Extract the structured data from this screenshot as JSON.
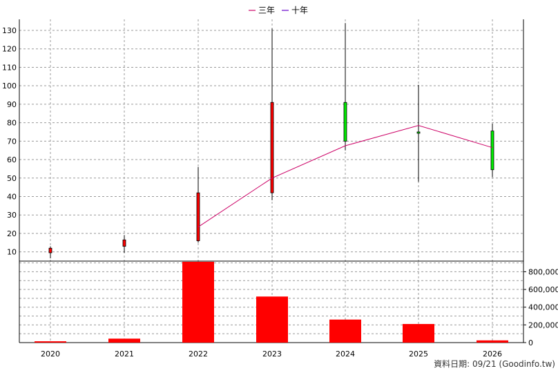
{
  "chart_data": {
    "type": "candlestick",
    "legend": [
      {
        "label": "三年",
        "color": "#cc0066"
      },
      {
        "label": "十年",
        "color": "#6600cc"
      }
    ],
    "x_categories": [
      "2020",
      "2021",
      "2022",
      "2023",
      "2024",
      "2025",
      "2026"
    ],
    "price_axis": {
      "ticks": [
        10,
        20,
        30,
        40,
        50,
        60,
        70,
        80,
        90,
        100,
        110,
        120,
        130
      ],
      "ylim": [
        5,
        136
      ]
    },
    "volume_axis": {
      "ticks": [
        0,
        200000,
        400000,
        600000,
        800000
      ],
      "tick_labels": [
        "0",
        "200,000",
        "400,000",
        "600,000",
        "800,000"
      ],
      "ylim": [
        0,
        920000
      ]
    },
    "candles": [
      {
        "year": "2020",
        "open": 9.5,
        "close": 12,
        "high": 13,
        "low": 6.5
      },
      {
        "year": "2021",
        "open": 13,
        "close": 16.5,
        "high": 19,
        "low": 9.5
      },
      {
        "year": "2022",
        "open": 16,
        "close": 42,
        "high": 56,
        "low": 15
      },
      {
        "year": "2023",
        "open": 42,
        "close": 91,
        "high": 131,
        "low": 38
      },
      {
        "year": "2024",
        "open": 91,
        "close": 70,
        "high": 134,
        "low": 65
      },
      {
        "year": "2025",
        "open": 75,
        "close": 74.5,
        "high": 100.5,
        "low": 48
      },
      {
        "year": "2026",
        "open": 75.5,
        "close": 54.5,
        "high": 79.5,
        "low": 50.5
      }
    ],
    "three_year_avg": [
      {
        "year": "2022",
        "value": 23.5
      },
      {
        "year": "2023",
        "value": 50
      },
      {
        "year": "2024",
        "value": 67.5
      },
      {
        "year": "2025",
        "value": 78.5
      },
      {
        "year": "2026",
        "value": 66.5
      }
    ],
    "volume": [
      {
        "year": "2020",
        "value": 15000
      },
      {
        "year": "2021",
        "value": 45000
      },
      {
        "year": "2022",
        "value": 940000
      },
      {
        "year": "2023",
        "value": 520000
      },
      {
        "year": "2024",
        "value": 260000
      },
      {
        "year": "2025",
        "value": 210000
      },
      {
        "year": "2026",
        "value": 25000
      }
    ],
    "colors": {
      "up": "#ff0000",
      "down": "#00ee00",
      "ma3": "#cc0066",
      "volume": "#ff0000",
      "grid": "#999999"
    }
  },
  "footer": {
    "text": "資料日期: 09/21  (Goodinfo.tw)"
  }
}
